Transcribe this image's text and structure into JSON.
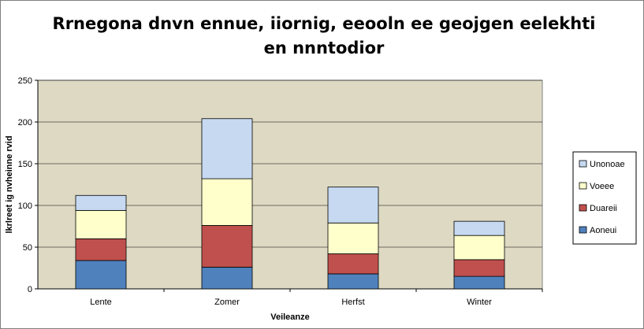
{
  "chart_data": {
    "type": "bar",
    "stacked": true,
    "title": "Rrnegona dnvn ennue, iiornig, eeooln ee geojgen eelekhti en nnntodior",
    "xlabel": "Veileanze",
    "ylabel": "lkrlreet ig nvheinne rvid",
    "ylim": [
      0,
      250
    ],
    "yticks": [
      0,
      50,
      100,
      150,
      200,
      250
    ],
    "grid": true,
    "legend_position": "right",
    "categories": [
      "Lente",
      "Zomer",
      "Herfst",
      "Winter"
    ],
    "series": [
      {
        "name": "Aoneui",
        "color": "#4f81bd",
        "values": [
          34,
          26,
          18,
          15
        ]
      },
      {
        "name": "Duareii",
        "color": "#c0504d",
        "values": [
          26,
          50,
          24,
          20
        ]
      },
      {
        "name": "Voeee",
        "color": "#ffffcc",
        "values": [
          34,
          56,
          37,
          29
        ]
      },
      {
        "name": "Unonoae",
        "color": "#c6d9f1",
        "values": [
          18,
          72,
          43,
          17
        ]
      }
    ],
    "plot_background": "#ddd9c3"
  }
}
